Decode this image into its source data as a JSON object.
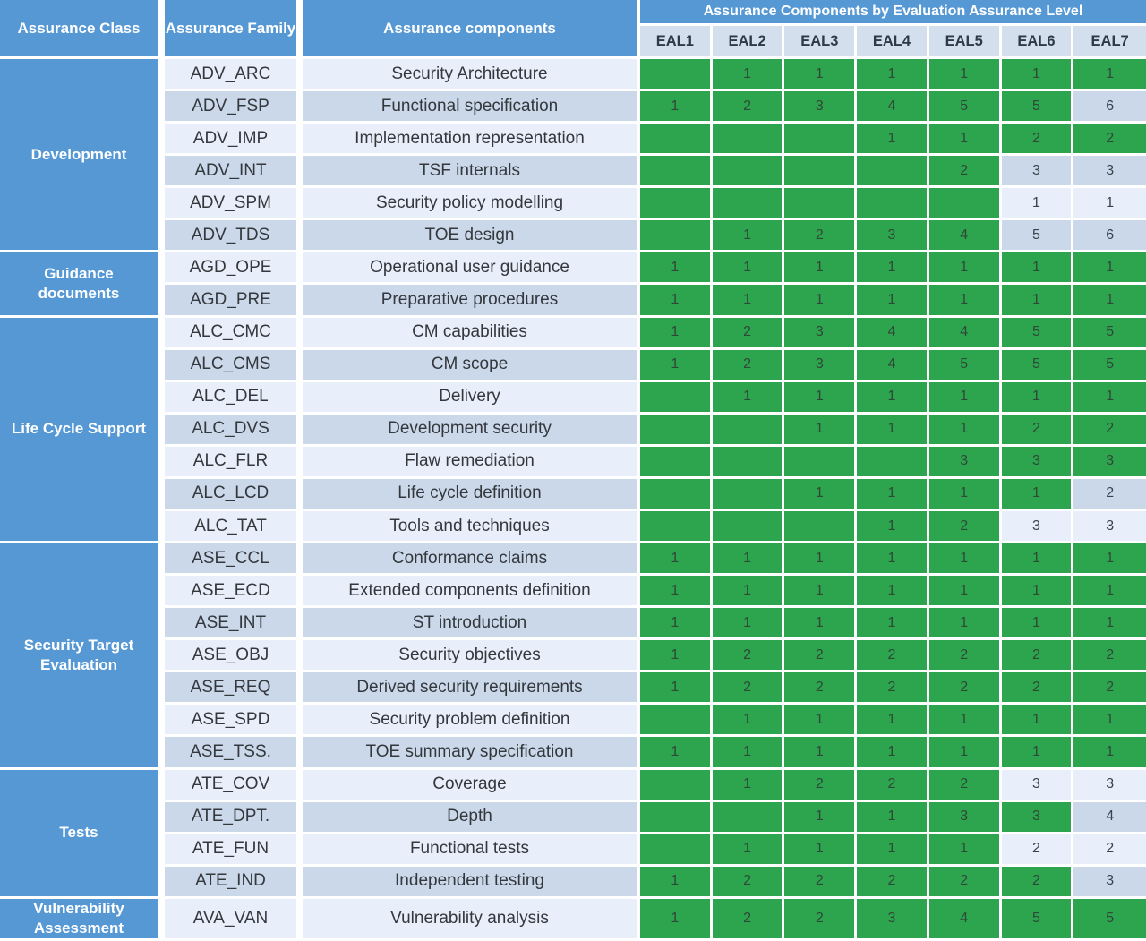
{
  "header": {
    "class_label": "Assurance  Class",
    "family_label": "Assurance Family",
    "components_label": "Assurance components",
    "banner": "Assurance Components by Evaluation Assurance Level",
    "eal_labels": [
      "EAL1",
      "EAL2",
      "EAL3",
      "EAL4",
      "EAL5",
      "EAL6",
      "EAL7"
    ]
  },
  "colors": {
    "blue": "#5598d4",
    "green": "#2da44e",
    "row_light": "#e9effa",
    "row_dark": "#cbd8ea",
    "eal_header_bg": "#d4dfee"
  },
  "groups": [
    {
      "class": "Development",
      "rows": [
        {
          "family": "ADV_ARC",
          "component": "Security Architecture",
          "eal": [
            "",
            "1",
            "1",
            "1",
            "1",
            "1",
            "1"
          ],
          "green": [
            1,
            1,
            1,
            1,
            1,
            1,
            1
          ]
        },
        {
          "family": "ADV_FSP",
          "component": "Functional specification",
          "eal": [
            "1",
            "2",
            "3",
            "4",
            "5",
            "5",
            "6"
          ],
          "green": [
            1,
            1,
            1,
            1,
            1,
            1,
            0
          ]
        },
        {
          "family": "ADV_IMP",
          "component": "Implementation representation",
          "eal": [
            "",
            "",
            "",
            "1",
            "1",
            "2",
            "2"
          ],
          "green": [
            1,
            1,
            1,
            1,
            1,
            1,
            1
          ]
        },
        {
          "family": "ADV_INT",
          "component": "TSF internals",
          "eal": [
            "",
            "",
            "",
            "",
            "2",
            "3",
            "3"
          ],
          "green": [
            1,
            1,
            1,
            1,
            1,
            0,
            0
          ]
        },
        {
          "family": "ADV_SPM",
          "component": "Security policy modelling",
          "eal": [
            "",
            "",
            "",
            "",
            "",
            "1",
            "1"
          ],
          "green": [
            1,
            1,
            1,
            1,
            1,
            0,
            0
          ]
        },
        {
          "family": "ADV_TDS",
          "component": "TOE design",
          "eal": [
            "",
            "1",
            "2",
            "3",
            "4",
            "5",
            "6"
          ],
          "green": [
            1,
            1,
            1,
            1,
            1,
            0,
            0
          ]
        }
      ]
    },
    {
      "class": "Guidance documents",
      "rows": [
        {
          "family": "AGD_OPE",
          "component": "Operational user guidance",
          "eal": [
            "1",
            "1",
            "1",
            "1",
            "1",
            "1",
            "1"
          ],
          "green": [
            1,
            1,
            1,
            1,
            1,
            1,
            1
          ]
        },
        {
          "family": "AGD_PRE",
          "component": "Preparative procedures",
          "eal": [
            "1",
            "1",
            "1",
            "1",
            "1",
            "1",
            "1"
          ],
          "green": [
            1,
            1,
            1,
            1,
            1,
            1,
            1
          ]
        }
      ]
    },
    {
      "class": "Life Cycle Support",
      "rows": [
        {
          "family": "ALC_CMC",
          "component": "CM capabilities",
          "eal": [
            "1",
            "2",
            "3",
            "4",
            "4",
            "5",
            "5"
          ],
          "green": [
            1,
            1,
            1,
            1,
            1,
            1,
            1
          ]
        },
        {
          "family": "ALC_CMS",
          "component": "CM scope",
          "eal": [
            "1",
            "2",
            "3",
            "4",
            "5",
            "5",
            "5"
          ],
          "green": [
            1,
            1,
            1,
            1,
            1,
            1,
            1
          ]
        },
        {
          "family": "ALC_DEL",
          "component": "Delivery",
          "eal": [
            "",
            "1",
            "1",
            "1",
            "1",
            "1",
            "1"
          ],
          "green": [
            1,
            1,
            1,
            1,
            1,
            1,
            1
          ]
        },
        {
          "family": "ALC_DVS",
          "component": "Development security",
          "eal": [
            "",
            "",
            "1",
            "1",
            "1",
            "2",
            "2"
          ],
          "green": [
            1,
            1,
            1,
            1,
            1,
            1,
            1
          ]
        },
        {
          "family": "ALC_FLR",
          "component": "Flaw remediation",
          "eal": [
            "",
            "",
            "",
            "",
            "3",
            "3",
            "3"
          ],
          "green": [
            1,
            1,
            1,
            1,
            1,
            1,
            1
          ]
        },
        {
          "family": "ALC_LCD",
          "component": "Life cycle definition",
          "eal": [
            "",
            "",
            "1",
            "1",
            "1",
            "1",
            "2"
          ],
          "green": [
            1,
            1,
            1,
            1,
            1,
            1,
            0
          ]
        },
        {
          "family": "ALC_TAT",
          "component": "Tools and techniques",
          "eal": [
            "",
            "",
            "",
            "1",
            "2",
            "3",
            "3"
          ],
          "green": [
            1,
            1,
            1,
            1,
            1,
            0,
            0
          ]
        }
      ]
    },
    {
      "class": "Security Target Evaluation",
      "rows": [
        {
          "family": "ASE_CCL",
          "component": "Conformance claims",
          "eal": [
            "1",
            "1",
            "1",
            "1",
            "1",
            "1",
            "1"
          ],
          "green": [
            1,
            1,
            1,
            1,
            1,
            1,
            1
          ]
        },
        {
          "family": "ASE_ECD",
          "component": "Extended components definition",
          "eal": [
            "1",
            "1",
            "1",
            "1",
            "1",
            "1",
            "1"
          ],
          "green": [
            1,
            1,
            1,
            1,
            1,
            1,
            1
          ]
        },
        {
          "family": "ASE_INT",
          "component": "ST introduction",
          "eal": [
            "1",
            "1",
            "1",
            "1",
            "1",
            "1",
            "1"
          ],
          "green": [
            1,
            1,
            1,
            1,
            1,
            1,
            1
          ]
        },
        {
          "family": "ASE_OBJ",
          "component": "Security objectives",
          "eal": [
            "1",
            "2",
            "2",
            "2",
            "2",
            "2",
            "2"
          ],
          "green": [
            1,
            1,
            1,
            1,
            1,
            1,
            1
          ]
        },
        {
          "family": "ASE_REQ",
          "component": "Derived security requirements",
          "eal": [
            "1",
            "2",
            "2",
            "2",
            "2",
            "2",
            "2"
          ],
          "green": [
            1,
            1,
            1,
            1,
            1,
            1,
            1
          ]
        },
        {
          "family": "ASE_SPD",
          "component": "Security problem definition",
          "eal": [
            "",
            "1",
            "1",
            "1",
            "1",
            "1",
            "1"
          ],
          "green": [
            1,
            1,
            1,
            1,
            1,
            1,
            1
          ]
        },
        {
          "family": "ASE_TSS.",
          "component": "TOE summary specification",
          "eal": [
            "1",
            "1",
            "1",
            "1",
            "1",
            "1",
            "1"
          ],
          "green": [
            1,
            1,
            1,
            1,
            1,
            1,
            1
          ]
        }
      ]
    },
    {
      "class": "Tests",
      "rows": [
        {
          "family": "ATE_COV",
          "component": "Coverage",
          "eal": [
            "",
            "1",
            "2",
            "2",
            "2",
            "3",
            "3"
          ],
          "green": [
            1,
            1,
            1,
            1,
            1,
            0,
            0
          ]
        },
        {
          "family": "ATE_DPT.",
          "component": "Depth",
          "eal": [
            "",
            "",
            "1",
            "1",
            "3",
            "3",
            "4"
          ],
          "green": [
            1,
            1,
            1,
            1,
            1,
            1,
            0
          ]
        },
        {
          "family": "ATE_FUN",
          "component": "Functional tests",
          "eal": [
            "",
            "1",
            "1",
            "1",
            "1",
            "2",
            "2"
          ],
          "green": [
            1,
            1,
            1,
            1,
            1,
            0,
            0
          ]
        },
        {
          "family": "ATE_IND",
          "component": "Independent testing",
          "eal": [
            "1",
            "2",
            "2",
            "2",
            "2",
            "2",
            "3"
          ],
          "green": [
            1,
            1,
            1,
            1,
            1,
            1,
            0
          ]
        }
      ]
    },
    {
      "class": "Vulnerability Assessment",
      "rows": [
        {
          "family": "AVA_VAN",
          "component": "Vulnerability analysis",
          "eal": [
            "1",
            "2",
            "2",
            "3",
            "4",
            "5",
            "5"
          ],
          "green": [
            1,
            1,
            1,
            1,
            1,
            1,
            1
          ]
        }
      ]
    }
  ]
}
